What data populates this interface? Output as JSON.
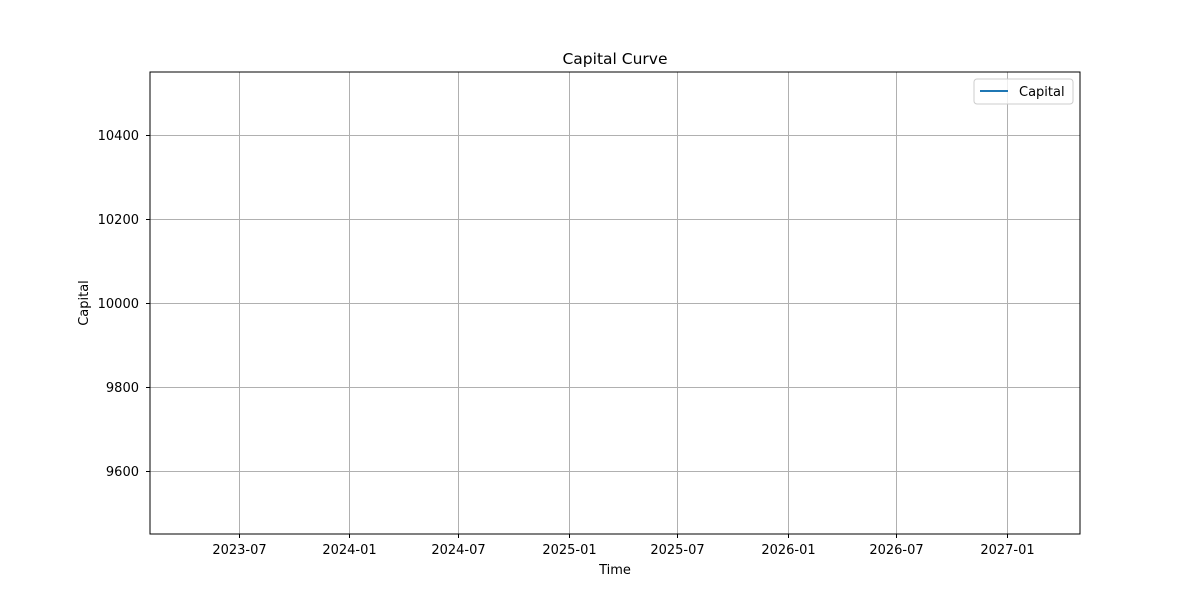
{
  "chart_data": {
    "type": "line",
    "title": "Capital Curve",
    "xlabel": "Time",
    "ylabel": "Capital",
    "grid": true,
    "legend_position": "top-right",
    "series": [
      {
        "name": "Capital",
        "color": "#1f77b4",
        "x": [],
        "y": []
      }
    ],
    "ylim": [
      9450,
      10550
    ],
    "yticks": [
      9600,
      9800,
      10000,
      10200,
      10400
    ],
    "ytick_labels": [
      "9600",
      "9800",
      "10000",
      "10200",
      "10400"
    ],
    "xlim": [
      "2023-02-03",
      "2027-05-03"
    ],
    "xticks": [
      "2023-07-01",
      "2024-01-01",
      "2024-07-01",
      "2025-01-01",
      "2025-07-01",
      "2026-01-01",
      "2026-07-01",
      "2027-01-01"
    ],
    "xtick_labels": [
      "2023-07",
      "2024-01",
      "2024-07",
      "2025-01",
      "2025-07",
      "2026-01",
      "2026-07",
      "2027-01"
    ]
  }
}
